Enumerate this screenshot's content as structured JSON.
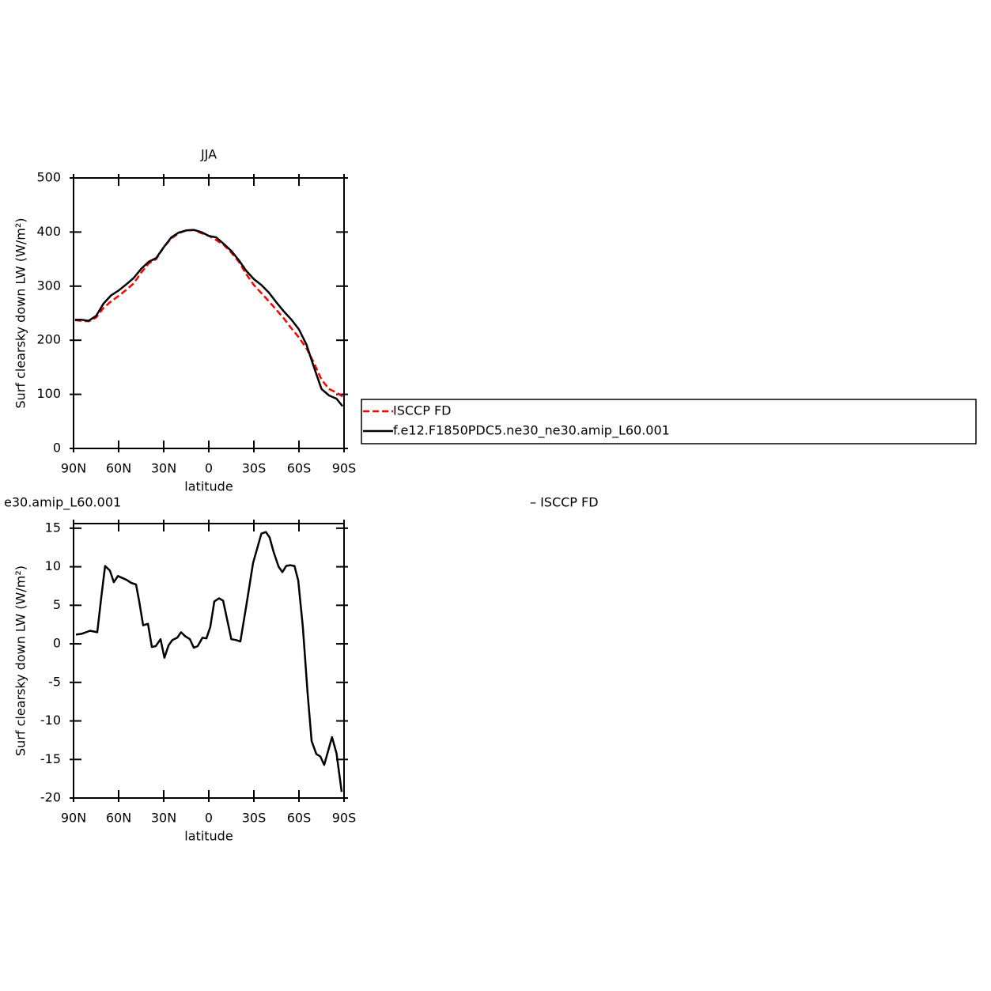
{
  "chart_data": [
    {
      "type": "line",
      "title": "JJA",
      "ylabel": "Surf clearsky down LW (W/m²)",
      "xlabel": "latitude",
      "x": [
        89,
        85,
        80,
        75,
        70,
        65,
        60,
        55,
        50,
        45,
        40,
        35,
        30,
        25,
        20,
        15,
        10,
        5,
        0,
        -5,
        -10,
        -15,
        -20,
        -25,
        -30,
        -35,
        -40,
        -45,
        -50,
        -55,
        -60,
        -65,
        -70,
        -75,
        -80,
        -85,
        -89
      ],
      "series": [
        {
          "name": "ISCCP FD",
          "color": "#ff0000",
          "dash": true,
          "values": [
            237,
            236,
            235,
            242,
            260,
            272,
            282,
            293,
            305,
            325,
            342,
            350,
            372,
            388,
            398,
            403,
            404,
            398,
            393,
            385,
            376,
            362,
            345,
            322,
            302,
            287,
            272,
            256,
            240,
            222,
            205,
            185,
            158,
            127,
            110,
            103,
            96
          ]
        },
        {
          "name": "f.e12.F1850PDC5.ne30_ne30.amip_L60.001",
          "color": "#000000",
          "dash": false,
          "values": [
            238,
            238,
            236,
            245,
            268,
            283,
            292,
            303,
            315,
            332,
            345,
            352,
            372,
            390,
            399,
            403,
            404,
            400,
            393,
            390,
            378,
            365,
            348,
            328,
            313,
            302,
            288,
            270,
            253,
            238,
            220,
            192,
            150,
            110,
            98,
            92,
            78
          ]
        }
      ],
      "xlim": [
        90,
        -90
      ],
      "xticks": [
        {
          "value": 90,
          "label": "90N"
        },
        {
          "value": 60,
          "label": "60N"
        },
        {
          "value": 30,
          "label": "30N"
        },
        0,
        {
          "value": -30,
          "label": "30S"
        },
        {
          "value": -60,
          "label": "60S"
        },
        {
          "value": -90,
          "label": "90S"
        }
      ],
      "ylim": [
        0,
        500
      ],
      "yticks": [
        0,
        100,
        200,
        300,
        400,
        500
      ],
      "legend": "right"
    },
    {
      "type": "line",
      "title": "e30.amip_L60.001",
      "annotation": "– ISCCP FD",
      "ylabel": "Surf clearsky down LW (W/m²)",
      "xlabel": "latitude",
      "x": [
        88.4,
        84.7,
        79,
        74.2,
        71.6,
        69,
        65.8,
        63.2,
        60.5,
        54.7,
        51.6,
        48.4,
        46.3,
        43.7,
        40.5,
        37.9,
        35.3,
        32.1,
        29.5,
        26.8,
        24.2,
        21,
        18.4,
        15.8,
        12.6,
        10,
        7.4,
        4.2,
        1.6,
        -1,
        -3.7,
        -6.8,
        -9.5,
        -15,
        -18,
        -21,
        -25,
        -29.5,
        -35,
        -38,
        -40.5,
        -43,
        -46.5,
        -49,
        -51.5,
        -54,
        -57,
        -59.5,
        -62.6,
        -65.8,
        -68.4,
        -71.6,
        -74.2,
        -76.8,
        -82,
        -85,
        -88.4
      ],
      "series": [
        {
          "color": "#000000",
          "dash": false,
          "values": [
            1.2,
            1.3,
            1.7,
            1.5,
            6,
            10.1,
            9.5,
            8.0,
            8.8,
            8.3,
            7.9,
            7.7,
            5.5,
            2.4,
            2.6,
            -0.4,
            -0.3,
            0.6,
            -1.8,
            -0.2,
            0.5,
            0.8,
            1.5,
            1.0,
            0.6,
            -0.5,
            -0.3,
            0.8,
            0.7,
            2.2,
            5.5,
            5.9,
            5.6,
            0.6,
            0.5,
            0.3,
            5,
            10.5,
            14.3,
            14.5,
            13.8,
            12,
            10,
            9.3,
            10.1,
            10.2,
            10.1,
            8.2,
            2.2,
            -6.5,
            -12.6,
            -14.3,
            -14.6,
            -15.7,
            -12.1,
            -14.2,
            -19.2
          ]
        }
      ],
      "xlim": [
        90,
        -90
      ],
      "xticks": [
        {
          "value": 90,
          "label": "90N"
        },
        {
          "value": 60,
          "label": "60N"
        },
        {
          "value": 30,
          "label": "30N"
        },
        0,
        {
          "value": -30,
          "label": "30S"
        },
        {
          "value": -60,
          "label": "60S"
        },
        {
          "value": -90,
          "label": "90S"
        }
      ],
      "ylim": [
        -20,
        15.6
      ],
      "yticks": [
        -20,
        -15,
        -10,
        -5,
        0,
        5,
        10,
        15
      ]
    }
  ]
}
